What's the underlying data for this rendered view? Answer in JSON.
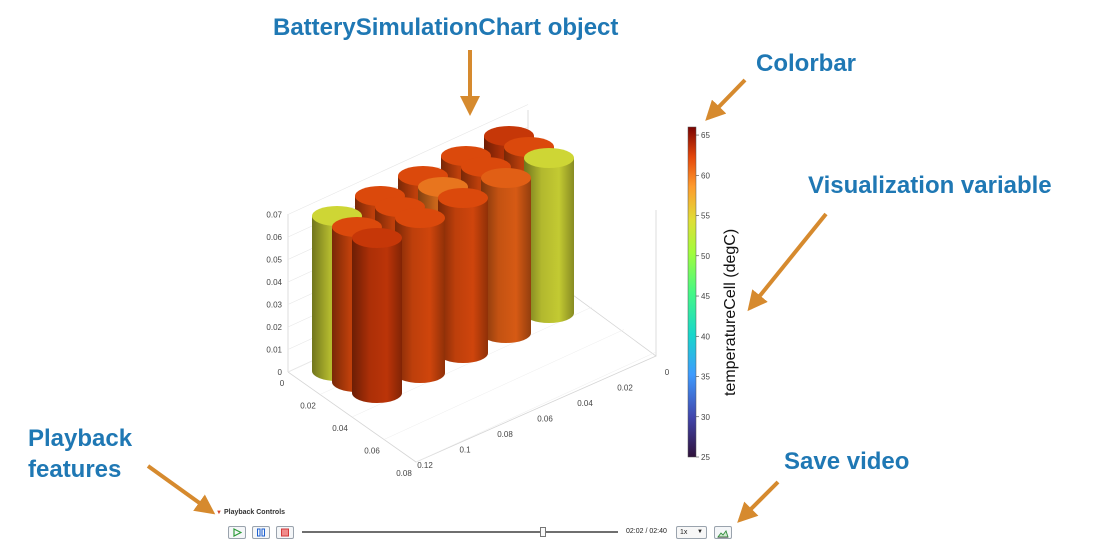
{
  "annotations": {
    "chart_object": "BatterySimulationChart object",
    "colorbar": "Colorbar",
    "visualization_variable": "Visualization variable",
    "playback_features_line1": "Playback",
    "playback_features_line2": "features",
    "save_video": "Save video"
  },
  "colors": {
    "annotation_text": "#1f78b4",
    "arrow": "#d68a2e"
  },
  "plot3d": {
    "z_ticks": [
      "0",
      "0.01",
      "0.02",
      "0.03",
      "0.04",
      "0.05",
      "0.06",
      "0.07"
    ],
    "y_ticks": [
      "0",
      "0.02",
      "0.04",
      "0.06",
      "0.08"
    ],
    "x_ticks": [
      "0",
      "0.02",
      "0.04",
      "0.06",
      "0.08",
      "0.1",
      "0.12"
    ],
    "cells": [
      {
        "row": 0,
        "col": 0,
        "temperature": 54
      },
      {
        "row": 0,
        "col": 1,
        "temperature": 62
      },
      {
        "row": 0,
        "col": 2,
        "temperature": 62
      },
      {
        "row": 0,
        "col": 3,
        "temperature": 62
      },
      {
        "row": 0,
        "col": 4,
        "temperature": 63
      },
      {
        "row": 1,
        "col": 0,
        "temperature": 62
      },
      {
        "row": 1,
        "col": 1,
        "temperature": 62
      },
      {
        "row": 1,
        "col": 2,
        "temperature": 60
      },
      {
        "row": 1,
        "col": 3,
        "temperature": 62
      },
      {
        "row": 1,
        "col": 4,
        "temperature": 62
      },
      {
        "row": 2,
        "col": 0,
        "temperature": 63
      },
      {
        "row": 2,
        "col": 1,
        "temperature": 62
      },
      {
        "row": 2,
        "col": 2,
        "temperature": 62
      },
      {
        "row": 2,
        "col": 3,
        "temperature": 61
      },
      {
        "row": 2,
        "col": 4,
        "temperature": 54
      }
    ]
  },
  "colorbar": {
    "label": "temperatureCell (degC)",
    "ticks": [
      "25",
      "30",
      "35",
      "40",
      "45",
      "50",
      "55",
      "60",
      "65"
    ],
    "min": 25,
    "max": 66
  },
  "playback": {
    "title": "Playback Controls",
    "time_display": "02:02 / 02:40",
    "progress_fraction": 0.7625,
    "speed": "1x",
    "buttons": {
      "play_icon": "play-icon",
      "pause_icon": "pause-icon",
      "stop_icon": "stop-icon",
      "save_icon": "save-video-icon"
    }
  }
}
